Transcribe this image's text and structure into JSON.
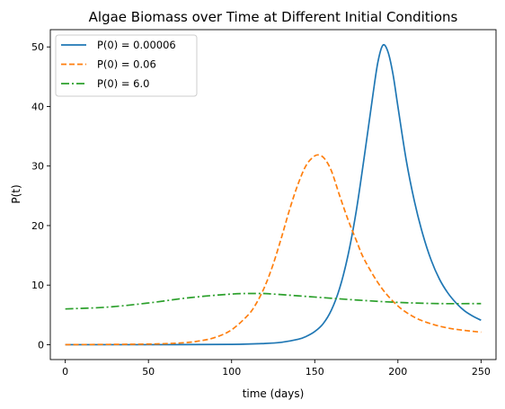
{
  "chart_data": {
    "type": "line",
    "title": "Algae Biomass over Time at Different Initial Conditions",
    "xlabel": "time (days)",
    "ylabel": "P(t)",
    "xlim": [
      -9,
      259
    ],
    "ylim": [
      -2.5,
      52.9
    ],
    "xticks": [
      0,
      50,
      100,
      150,
      200,
      250
    ],
    "yticks": [
      0,
      10,
      20,
      30,
      40,
      50
    ],
    "grid": false,
    "legend_position": "upper-left",
    "series": [
      {
        "name": "P(0) = 0.00006",
        "color": "#1f77b4",
        "style": "solid",
        "x": [
          0,
          50,
          100,
          120,
          130,
          140,
          145,
          150,
          155,
          160,
          165,
          170,
          175,
          180,
          185,
          188,
          191,
          194,
          197,
          200,
          205,
          210,
          215,
          220,
          225,
          230,
          235,
          240,
          245,
          250
        ],
        "y": [
          0.0,
          0.0,
          0.05,
          0.2,
          0.4,
          0.9,
          1.4,
          2.2,
          3.5,
          5.8,
          9.5,
          15.0,
          22.5,
          32.0,
          42.0,
          47.5,
          50.3,
          49.2,
          45.5,
          40.0,
          31.0,
          24.0,
          18.5,
          14.2,
          11.0,
          8.7,
          7.0,
          5.7,
          4.8,
          4.1
        ]
      },
      {
        "name": "P(0) = 0.06",
        "color": "#ff7f0e",
        "style": "dashed",
        "x": [
          0,
          50,
          70,
          80,
          90,
          100,
          110,
          115,
          120,
          125,
          130,
          135,
          140,
          145,
          150,
          153,
          156,
          160,
          165,
          170,
          175,
          180,
          190,
          200,
          210,
          220,
          230,
          240,
          250
        ],
        "y": [
          0.0,
          0.1,
          0.3,
          0.6,
          1.2,
          2.5,
          5.0,
          7.0,
          9.8,
          13.5,
          18.0,
          22.8,
          27.0,
          30.2,
          31.7,
          31.8,
          31.2,
          29.2,
          25.0,
          21.0,
          17.5,
          14.2,
          9.6,
          6.5,
          4.6,
          3.5,
          2.8,
          2.4,
          2.1
        ]
      },
      {
        "name": "P(0) = 6.0",
        "color": "#2ca02c",
        "style": "dashdot",
        "x": [
          0,
          25,
          50,
          75,
          100,
          115,
          125,
          150,
          175,
          200,
          225,
          250
        ],
        "y": [
          6.0,
          6.3,
          7.0,
          7.9,
          8.5,
          8.6,
          8.5,
          8.0,
          7.5,
          7.1,
          6.9,
          6.9
        ]
      }
    ]
  }
}
